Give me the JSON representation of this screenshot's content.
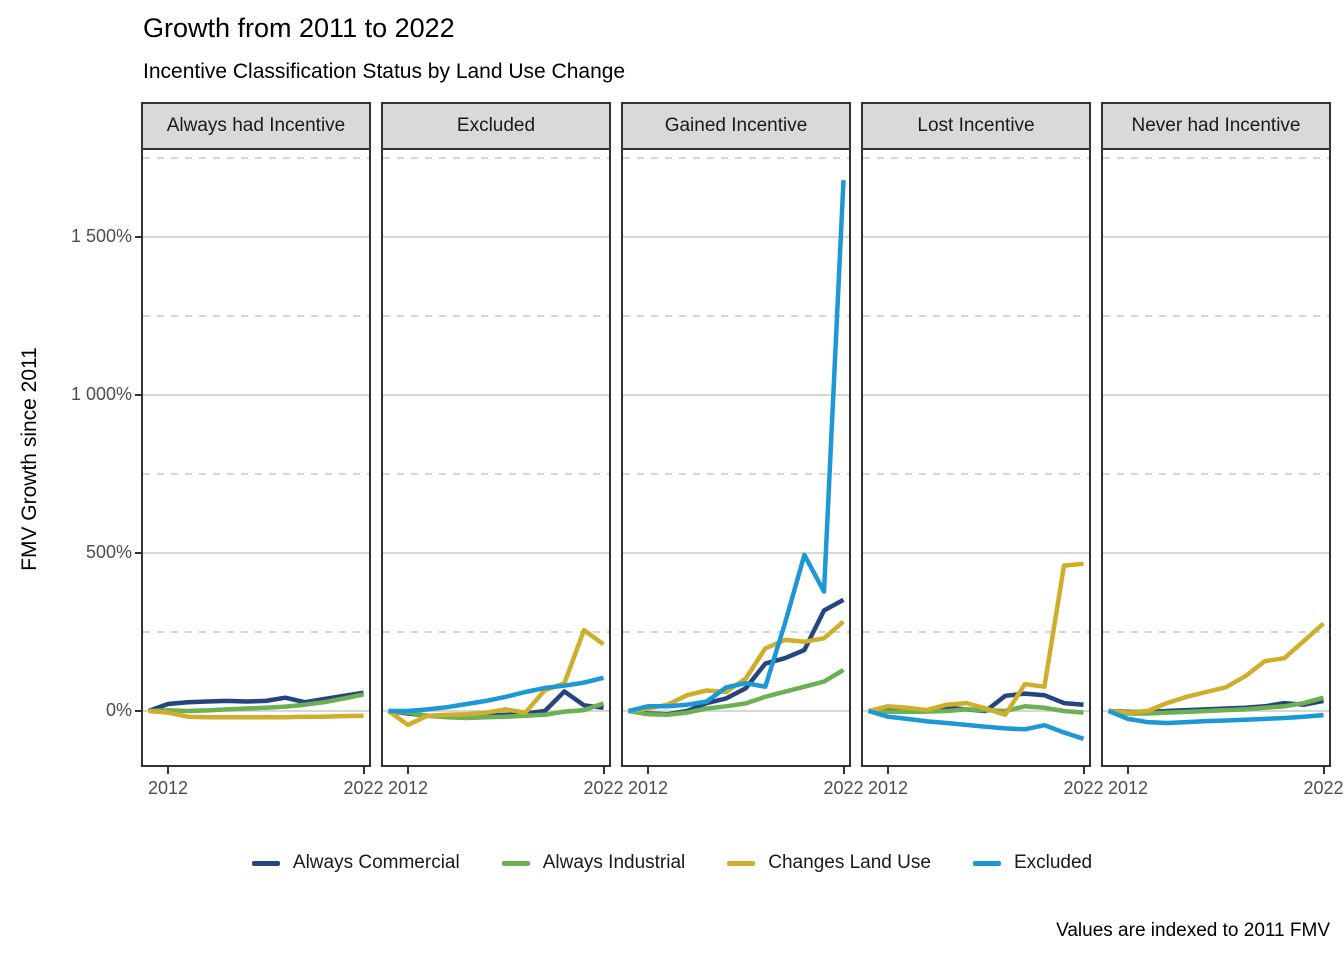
{
  "title": "Growth from 2011 to 2022",
  "subtitle": "Incentive Classification Status by Land Use Change",
  "caption": "Values are indexed to 2011 FMV",
  "chart_data": {
    "type": "line",
    "facet_variable_values": [
      "Always had Incentive",
      "Excluded",
      "Gained Incentive",
      "Lost Incentive",
      "Never had Incentive"
    ],
    "x": [
      2011,
      2012,
      2013,
      2014,
      2015,
      2016,
      2017,
      2018,
      2019,
      2020,
      2021,
      2022
    ],
    "xlabel": "",
    "ylabel": "FMV Growth since 2011",
    "x_tick_labels": [
      "2012",
      "2022"
    ],
    "x_tick_values": [
      2012,
      2022
    ],
    "y_major_ticks": [
      {
        "label": "1 500%",
        "value": 1500
      },
      {
        "label": "1 000%",
        "value": 1000
      },
      {
        "label": "500%",
        "value": 500
      },
      {
        "label": "0%",
        "value": 0
      }
    ],
    "y_minor_ticks": [
      1750,
      1250,
      750,
      250
    ],
    "xlim": [
      2011,
      2022
    ],
    "ylim_percent": [
      -175,
      1775
    ],
    "grid": "major solid, minor dashed",
    "legend_position": "bottom",
    "series_colors": {
      "Always Commercial": "#25457e",
      "Always Industrial": "#6bb052",
      "Changes Land Use": "#cfae2b",
      "Excluded": "#1d98d6"
    },
    "facets": [
      {
        "label": "Always had Incentive",
        "series": [
          {
            "name": "Always Commercial",
            "values": [
              0,
              22,
              28,
              30,
              32,
              30,
              32,
              42,
              28,
              38,
              48,
              58
            ]
          },
          {
            "name": "Always Industrial",
            "values": [
              0,
              2,
              0,
              2,
              5,
              8,
              10,
              14,
              20,
              28,
              40,
              52
            ]
          },
          {
            "name": "Changes Land Use",
            "values": [
              0,
              -5,
              -18,
              -20,
              -20,
              -20,
              -20,
              -20,
              -18,
              -18,
              -16,
              -15
            ]
          }
        ]
      },
      {
        "label": "Excluded",
        "series": [
          {
            "name": "Always Commercial",
            "values": [
              0,
              -8,
              -15,
              -18,
              -18,
              -15,
              -12,
              -8,
              0,
              62,
              18,
              10
            ]
          },
          {
            "name": "Always Industrial",
            "values": [
              0,
              -5,
              -15,
              -20,
              -22,
              -20,
              -18,
              -15,
              -12,
              -2,
              3,
              24
            ]
          },
          {
            "name": "Changes Land Use",
            "values": [
              0,
              -44,
              -15,
              -12,
              -10,
              -5,
              5,
              -5,
              66,
              88,
              256,
              211
            ]
          },
          {
            "name": "Excluded",
            "values": [
              0,
              0,
              5,
              12,
              22,
              32,
              45,
              60,
              73,
              80,
              90,
              105
            ]
          }
        ]
      },
      {
        "label": "Gained Incentive",
        "series": [
          {
            "name": "Always Commercial",
            "values": [
              0,
              -8,
              -10,
              0,
              25,
              40,
              72,
              150,
              167,
              193,
              318,
              352
            ]
          },
          {
            "name": "Always Industrial",
            "values": [
              0,
              -10,
              -12,
              -5,
              8,
              15,
              24,
              45,
              61,
              77,
              93,
              130
            ]
          },
          {
            "name": "Changes Land Use",
            "values": [
              0,
              8,
              20,
              50,
              65,
              60,
              103,
              198,
              225,
              219,
              230,
              283
            ]
          },
          {
            "name": "Excluded",
            "values": [
              0,
              15,
              15,
              20,
              30,
              75,
              88,
              77,
              277,
              494,
              378,
              1680
            ]
          }
        ]
      },
      {
        "label": "Lost Incentive",
        "series": [
          {
            "name": "Always Commercial",
            "values": [
              0,
              3,
              3,
              0,
              10,
              5,
              0,
              48,
              55,
              50,
              25,
              20
            ]
          },
          {
            "name": "Always Industrial",
            "values": [
              0,
              -2,
              -3,
              -2,
              0,
              5,
              3,
              0,
              15,
              10,
              0,
              -5
            ]
          },
          {
            "name": "Changes Land Use",
            "values": [
              0,
              15,
              10,
              3,
              20,
              25,
              8,
              -12,
              85,
              77,
              460,
              466
            ]
          },
          {
            "name": "Excluded",
            "values": [
              0,
              -18,
              -25,
              -33,
              -38,
              -44,
              -50,
              -55,
              -58,
              -45,
              -68,
              -88
            ]
          }
        ]
      },
      {
        "label": "Never had Incentive",
        "series": [
          {
            "name": "Always Commercial",
            "values": [
              0,
              -3,
              -3,
              0,
              3,
              5,
              8,
              10,
              15,
              25,
              20,
              32
            ]
          },
          {
            "name": "Always Industrial",
            "values": [
              0,
              -8,
              -8,
              -5,
              -3,
              0,
              3,
              5,
              10,
              15,
              25,
              42
            ]
          },
          {
            "name": "Changes Land Use",
            "values": [
              0,
              -5,
              0,
              25,
              45,
              60,
              75,
              110,
              158,
              167,
              222,
              277
            ]
          },
          {
            "name": "Excluded",
            "values": [
              0,
              -25,
              -35,
              -38,
              -35,
              -32,
              -30,
              -28,
              -25,
              -22,
              -18,
              -13
            ]
          }
        ]
      }
    ]
  },
  "legend": {
    "items": [
      {
        "label": "Always Commercial",
        "color": "#25457e"
      },
      {
        "label": "Always Industrial",
        "color": "#6bb052"
      },
      {
        "label": "Changes Land Use",
        "color": "#cfae2b"
      },
      {
        "label": "Excluded",
        "color": "#1d98d6"
      }
    ]
  },
  "style_colors": {
    "strip_fill": "#d9d9d9",
    "panel_border": "#333333",
    "grid_major": "#c9c9c9",
    "grid_minor": "#c7c7c7",
    "axis_text": "#4d4d4d"
  }
}
